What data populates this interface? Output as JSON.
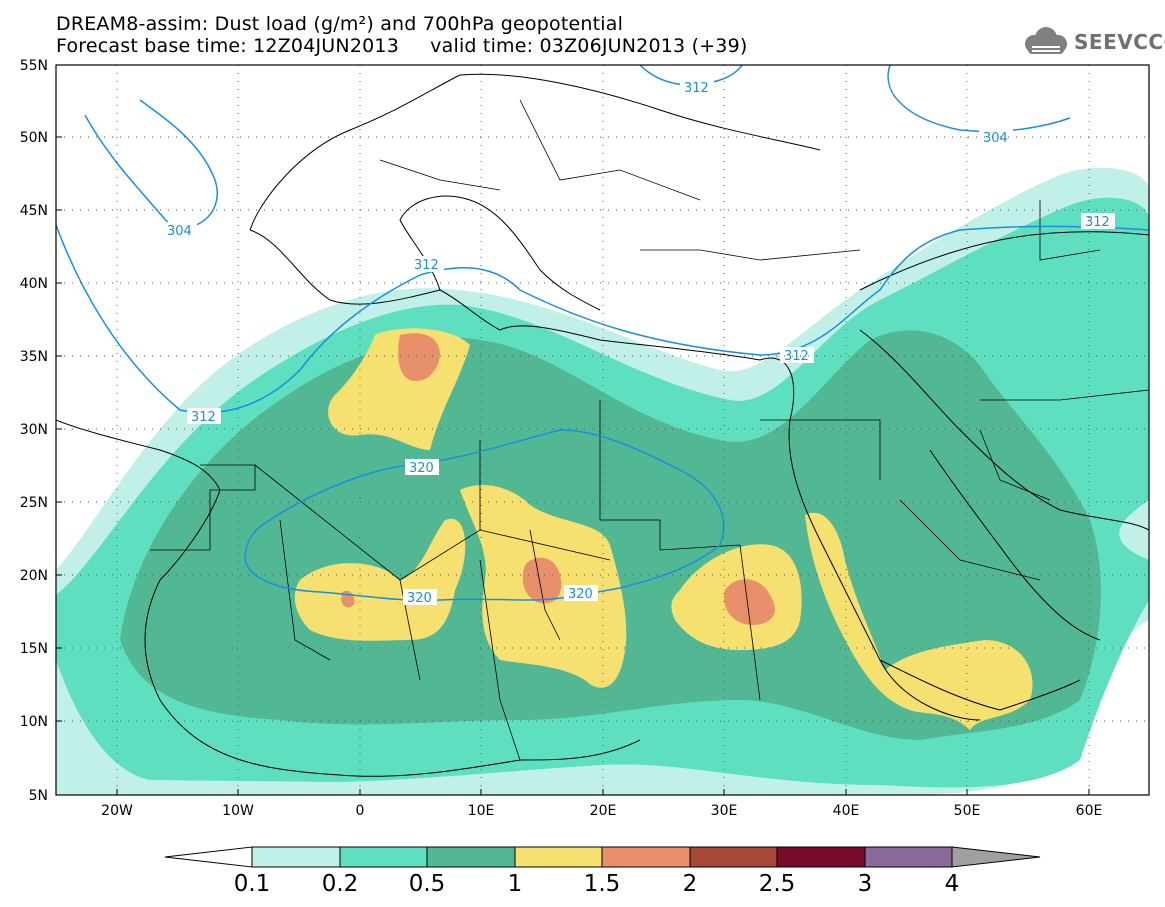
{
  "title": {
    "line1": "DREAM8-assim: Dust load (g/m²) and 700hPa geopotential",
    "line2": "Forecast base time: 12Z04JUN2013     valid time: 03Z06JUN2013 (+39)"
  },
  "logo": {
    "text": "SEEVCCC",
    "icon": "cloud-icon"
  },
  "axes": {
    "lat_labels": [
      "55N",
      "50N",
      "45N",
      "40N",
      "35N",
      "30N",
      "25N",
      "20N",
      "15N",
      "10N",
      "5N"
    ],
    "lon_labels": [
      "20W",
      "10W",
      "0",
      "10E",
      "20E",
      "30E",
      "40E",
      "50E",
      "60E"
    ],
    "lat_range": [
      5,
      55
    ],
    "lon_range": [
      -25,
      65
    ]
  },
  "contours": {
    "color": "#1a8fe0",
    "labels": [
      "312",
      "304",
      "312",
      "304",
      "312",
      "312",
      "312",
      "320",
      "320",
      "320"
    ]
  },
  "colorbar": {
    "labels": [
      "0.1",
      "0.2",
      "0.5",
      "1",
      "1.5",
      "2",
      "2.5",
      "3",
      "4"
    ],
    "colors": [
      "#ffffff",
      "#c0f0e8",
      "#5ee0c0",
      "#52b894",
      "#f5e070",
      "#e8906a",
      "#a84838",
      "#7a0a2a",
      "#8a6a9a",
      "#a0a0a0"
    ],
    "levels": [
      0.1,
      0.2,
      0.5,
      1,
      1.5,
      2,
      2.5,
      3,
      4
    ]
  },
  "colors": {
    "shade_01": "#c0f0e8",
    "shade_02": "#5ee0c0",
    "shade_05": "#52b894",
    "shade_1": "#f5e070",
    "shade_15": "#e8906a",
    "contour": "#1a8fe0",
    "land": "#ffffff",
    "border": "#000000"
  }
}
